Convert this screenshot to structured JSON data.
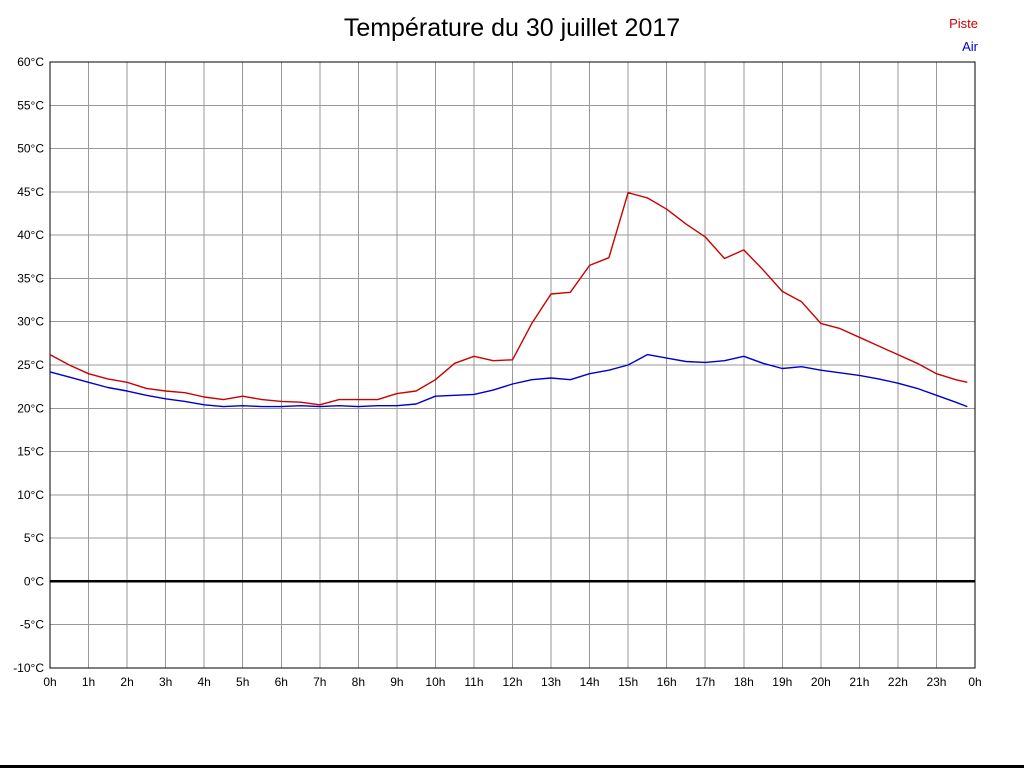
{
  "title": "Température du 30 juillet 2017",
  "legend": [
    {
      "label": "Piste",
      "color": "#cc0000"
    },
    {
      "label": "Air",
      "color": "#0000cc"
    }
  ],
  "chart_data": {
    "type": "line",
    "title": "Température du 30 juillet 2017",
    "xlabel": "",
    "ylabel": "",
    "ylim": [
      -10,
      60
    ],
    "y_tick_step": 5,
    "y_tick_suffix": "°C",
    "grid": true,
    "zero_line_value": 0,
    "legend_position": "top-right",
    "x_tick_labels": [
      "0h",
      "1h",
      "2h",
      "3h",
      "4h",
      "5h",
      "6h",
      "7h",
      "8h",
      "9h",
      "10h",
      "11h",
      "12h",
      "13h",
      "14h",
      "15h",
      "16h",
      "17h",
      "18h",
      "19h",
      "20h",
      "21h",
      "22h",
      "23h",
      "0h"
    ],
    "x": [
      0,
      0.5,
      1,
      1.5,
      2,
      2.5,
      3,
      3.5,
      4,
      4.5,
      5,
      5.5,
      6,
      6.5,
      7,
      7.5,
      8,
      8.5,
      9,
      9.5,
      10,
      10.5,
      11,
      11.5,
      12,
      12.5,
      13,
      13.5,
      14,
      14.5,
      15,
      15.5,
      16,
      16.5,
      17,
      17.5,
      18,
      18.5,
      19,
      19.5,
      20,
      20.5,
      21,
      21.5,
      22,
      22.5,
      23,
      23.5,
      23.8
    ],
    "series": [
      {
        "name": "Piste",
        "color": "#cc0000",
        "values": [
          26.2,
          25.0,
          24.0,
          23.4,
          23.0,
          22.3,
          22.0,
          21.8,
          21.3,
          21.0,
          21.4,
          21.0,
          20.8,
          20.7,
          20.4,
          21.0,
          21.0,
          21.0,
          21.7,
          22.0,
          23.3,
          25.2,
          26.0,
          25.5,
          25.6,
          29.8,
          33.2,
          33.4,
          36.5,
          37.4,
          44.9,
          44.3,
          43.0,
          41.3,
          39.8,
          37.3,
          38.3,
          36.0,
          33.5,
          32.3,
          29.8,
          29.2,
          28.2,
          27.2,
          26.2,
          25.2,
          24.0,
          23.3,
          23.0
        ]
      },
      {
        "name": "Air",
        "color": "#0000cc",
        "values": [
          24.2,
          23.6,
          23.0,
          22.4,
          22.0,
          21.5,
          21.1,
          20.8,
          20.4,
          20.2,
          20.3,
          20.2,
          20.2,
          20.3,
          20.2,
          20.3,
          20.2,
          20.3,
          20.3,
          20.5,
          21.4,
          21.5,
          21.6,
          22.1,
          22.8,
          23.3,
          23.5,
          23.3,
          24.0,
          24.4,
          25.0,
          26.2,
          25.8,
          25.4,
          25.3,
          25.5,
          26.0,
          25.2,
          24.6,
          24.8,
          24.4,
          24.1,
          23.8,
          23.4,
          22.9,
          22.3,
          21.5,
          20.7,
          20.2
        ]
      }
    ]
  }
}
